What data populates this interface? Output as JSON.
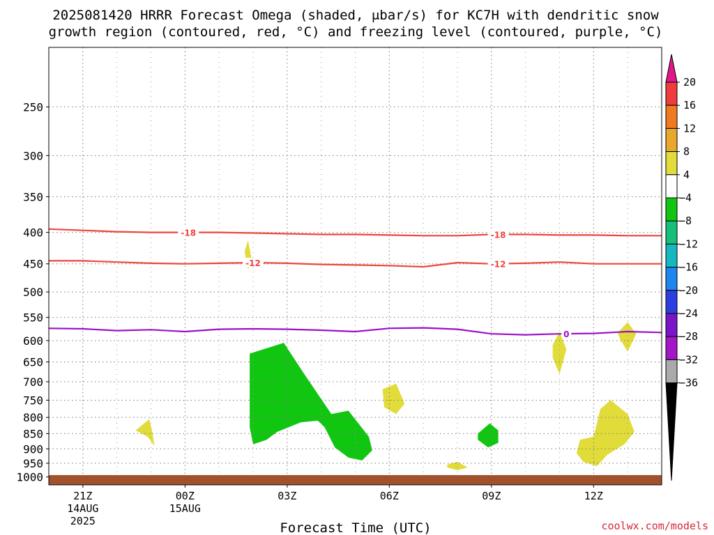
{
  "title_line1": "2025081420 HRRR Forecast Omega (shaded, μbar/s) for KC7H with dendritic snow",
  "title_line2": "growth region (contoured, red, °C) and freezing level (contoured, purple, °C)",
  "credit": "coolwx.com/models",
  "colors": {
    "temp_contour": "#f0443c",
    "freezing_contour": "#9a10c8",
    "ground": "#a0522d",
    "positive_omega": "#e1dc3a",
    "negative_omega": "#11c611"
  },
  "chart_data": {
    "type": "time-height cross section",
    "xlabel": "Forecast Time (UTC)",
    "x_ticks": [
      {
        "hour": 0,
        "label": "21Z",
        "sub1": "14AUG",
        "sub2": "2025"
      },
      {
        "hour": 3,
        "label": "00Z",
        "sub1": "15AUG",
        "sub2": ""
      },
      {
        "hour": 6,
        "label": "03Z",
        "sub1": "",
        "sub2": ""
      },
      {
        "hour": 9,
        "label": "06Z",
        "sub1": "",
        "sub2": ""
      },
      {
        "hour": 12,
        "label": "09Z",
        "sub1": "",
        "sub2": ""
      },
      {
        "hour": 15,
        "label": "12Z",
        "sub1": "",
        "sub2": ""
      }
    ],
    "x_range_hours": [
      -1,
      17
    ],
    "y_axis": "pressure (mb)",
    "y_scale": "log",
    "y_range": [
      1030,
      200
    ],
    "y_ticks": [
      250,
      300,
      350,
      400,
      450,
      500,
      550,
      600,
      650,
      700,
      750,
      800,
      850,
      900,
      950,
      1000
    ],
    "grid": true,
    "colorbar": {
      "labels": [
        "20",
        "16",
        "12",
        "8",
        "4",
        "−4",
        "−8",
        "−12",
        "−16",
        "−20",
        "−24",
        "−28",
        "−32",
        "−36"
      ],
      "colors": [
        "#f03c3c",
        "#ef7a20",
        "#e8a82c",
        "#e1dc3a",
        "#ffffff",
        "#11c611",
        "#16bf7a",
        "#16b8c0",
        "#1f86ef",
        "#2c3fe0",
        "#7a16c8",
        "#a416c8",
        "#aaaaaa"
      ],
      "top_arrow_color": "#e0188a",
      "bottom_arrow_color": "#000000"
    },
    "contours": [
      {
        "label": "-18",
        "color": "temp",
        "label_at_hours": [
          3.1,
          12.2
        ],
        "points": [
          [
            -1,
            395
          ],
          [
            0,
            397
          ],
          [
            1,
            399
          ],
          [
            2,
            400
          ],
          [
            3,
            400
          ],
          [
            4,
            400
          ],
          [
            5,
            401
          ],
          [
            6,
            402
          ],
          [
            7,
            403
          ],
          [
            8,
            403
          ],
          [
            9,
            404
          ],
          [
            10,
            405
          ],
          [
            11,
            405
          ],
          [
            12,
            403
          ],
          [
            13,
            403
          ],
          [
            14,
            404
          ],
          [
            15,
            404
          ],
          [
            16,
            405
          ],
          [
            17,
            405
          ]
        ]
      },
      {
        "label": "-12",
        "color": "temp",
        "label_at_hours": [
          5.0,
          12.2
        ],
        "points": [
          [
            -1,
            445
          ],
          [
            0,
            445
          ],
          [
            1,
            447
          ],
          [
            2,
            449
          ],
          [
            3,
            450
          ],
          [
            4,
            449
          ],
          [
            5,
            448
          ],
          [
            6,
            449
          ],
          [
            7,
            451
          ],
          [
            8,
            452
          ],
          [
            9,
            453
          ],
          [
            10,
            455
          ],
          [
            11,
            448
          ],
          [
            12,
            450
          ],
          [
            13,
            449
          ],
          [
            14,
            447
          ],
          [
            15,
            450
          ],
          [
            16,
            450
          ],
          [
            17,
            450
          ]
        ]
      },
      {
        "label": "0",
        "color": "freezing",
        "label_at_hours": [
          14.2
        ],
        "points": [
          [
            -1,
            573
          ],
          [
            0,
            574
          ],
          [
            1,
            578
          ],
          [
            2,
            576
          ],
          [
            3,
            580
          ],
          [
            4,
            575
          ],
          [
            5,
            574
          ],
          [
            6,
            575
          ],
          [
            7,
            577
          ],
          [
            8,
            580
          ],
          [
            9,
            573
          ],
          [
            10,
            572
          ],
          [
            11,
            575
          ],
          [
            12,
            585
          ],
          [
            13,
            587
          ],
          [
            14,
            585
          ],
          [
            15,
            584
          ],
          [
            16,
            580
          ],
          [
            17,
            582
          ]
        ]
      }
    ],
    "omega_regions": [
      {
        "sign": "positive",
        "points": [
          [
            1.55,
            840
          ],
          [
            1.95,
            805
          ],
          [
            2.05,
            850
          ],
          [
            2.1,
            890
          ],
          [
            1.9,
            860
          ]
        ]
      },
      {
        "sign": "positive",
        "points": [
          [
            4.75,
            430
          ],
          [
            4.85,
            412
          ],
          [
            4.95,
            440
          ],
          [
            4.85,
            460
          ]
        ]
      },
      {
        "sign": "positive",
        "points": [
          [
            8.8,
            720
          ],
          [
            9.2,
            705
          ],
          [
            9.45,
            760
          ],
          [
            9.2,
            790
          ],
          [
            8.85,
            770
          ]
        ]
      },
      {
        "sign": "positive",
        "points": [
          [
            10.7,
            955
          ],
          [
            11.0,
            945
          ],
          [
            11.3,
            965
          ],
          [
            11.0,
            975
          ],
          [
            10.7,
            965
          ]
        ]
      },
      {
        "sign": "positive",
        "points": [
          [
            13.8,
            610
          ],
          [
            14.0,
            580
          ],
          [
            14.2,
            620
          ],
          [
            14.0,
            680
          ],
          [
            13.8,
            640
          ]
        ]
      },
      {
        "sign": "positive",
        "points": [
          [
            14.6,
            870
          ],
          [
            15.0,
            860
          ],
          [
            15.2,
            775
          ],
          [
            15.5,
            750
          ],
          [
            16.0,
            790
          ],
          [
            16.2,
            845
          ],
          [
            15.9,
            885
          ],
          [
            15.4,
            920
          ],
          [
            15.1,
            960
          ],
          [
            14.7,
            945
          ],
          [
            14.5,
            915
          ]
        ]
      },
      {
        "sign": "positive",
        "points": [
          [
            15.7,
            583
          ],
          [
            16.0,
            560
          ],
          [
            16.25,
            585
          ],
          [
            16.0,
            625
          ],
          [
            15.8,
            600
          ]
        ]
      },
      {
        "sign": "negative",
        "points": [
          [
            4.9,
            630
          ],
          [
            5.9,
            605
          ],
          [
            6.5,
            680
          ],
          [
            7.3,
            790
          ],
          [
            7.8,
            780
          ],
          [
            8.4,
            860
          ],
          [
            8.5,
            905
          ],
          [
            8.2,
            940
          ],
          [
            7.8,
            930
          ],
          [
            7.4,
            895
          ],
          [
            7.1,
            830
          ],
          [
            6.9,
            810
          ],
          [
            6.4,
            815
          ],
          [
            5.7,
            845
          ],
          [
            5.4,
            870
          ],
          [
            5.0,
            885
          ],
          [
            4.9,
            830
          ]
        ]
      },
      {
        "sign": "negative",
        "points": [
          [
            11.6,
            850
          ],
          [
            11.95,
            818
          ],
          [
            12.2,
            840
          ],
          [
            12.2,
            880
          ],
          [
            11.9,
            895
          ],
          [
            11.6,
            870
          ]
        ]
      }
    ]
  }
}
